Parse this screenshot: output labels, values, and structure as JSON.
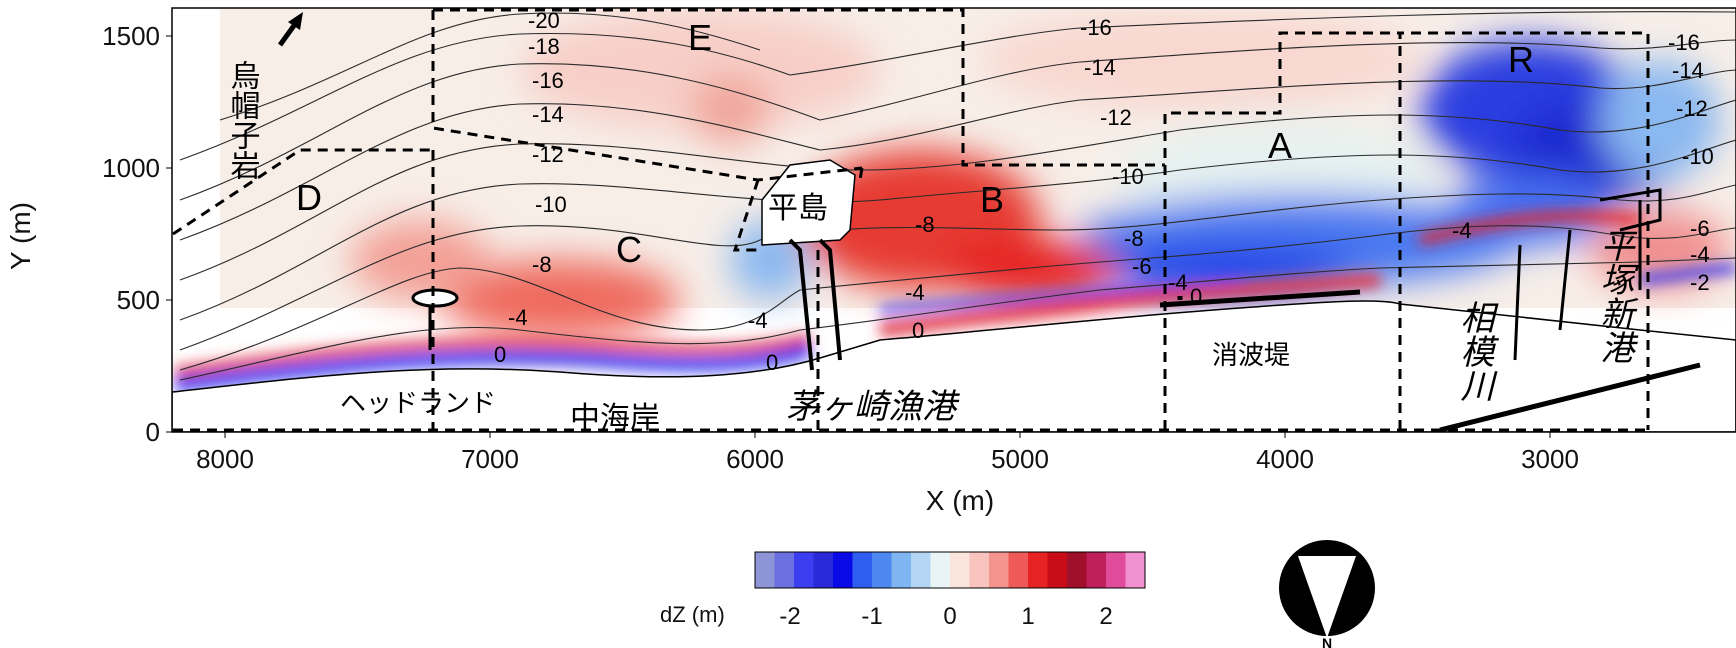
{
  "map": {
    "x_axis": {
      "title": "X (m)",
      "ticks": [
        "8000",
        "7000",
        "6000",
        "5000",
        "4000",
        "3000"
      ]
    },
    "y_axis": {
      "title": "Y (m)",
      "ticks": [
        "0",
        "500",
        "1000",
        "1500"
      ]
    },
    "regions": [
      {
        "id": "A",
        "label": "A"
      },
      {
        "id": "B",
        "label": "B"
      },
      {
        "id": "C",
        "label": "C"
      },
      {
        "id": "D",
        "label": "D"
      },
      {
        "id": "E",
        "label": "E"
      },
      {
        "id": "R",
        "label": "R"
      }
    ],
    "place_names": {
      "eboshi_rock": "烏帽子岩",
      "hiratsuka": "平島",
      "headland": "ヘッドランド",
      "naka_kaigan": "中海岸",
      "chigasaki_port": "茅ヶ崎漁港",
      "breakwater": "消波堤",
      "sagami_river": "相模川",
      "hiratsuka_new_port": "平塚新港"
    },
    "contour_labels": [
      "-20",
      "-18",
      "-16",
      "-14",
      "-12",
      "-10",
      "-8",
      "-6",
      "-4",
      "-2",
      "0"
    ],
    "colorbar": {
      "title": "dZ (m)",
      "ticks": [
        "-2",
        "-1",
        "0",
        "1",
        "2"
      ],
      "colors": [
        "#8e95d6",
        "#6a70e0",
        "#3c3cf0",
        "#2a2ad8",
        "#0a0ae6",
        "#2f5df2",
        "#4d88f0",
        "#7fb6f2",
        "#b4d6f4",
        "#e8f4f6",
        "#fbe4dc",
        "#f8c3bc",
        "#f4948e",
        "#ee5a58",
        "#e62222",
        "#c80c18",
        "#a0102a",
        "#c0205a",
        "#e04c9a",
        "#f090d0"
      ]
    },
    "north_arrow_label": "N"
  }
}
